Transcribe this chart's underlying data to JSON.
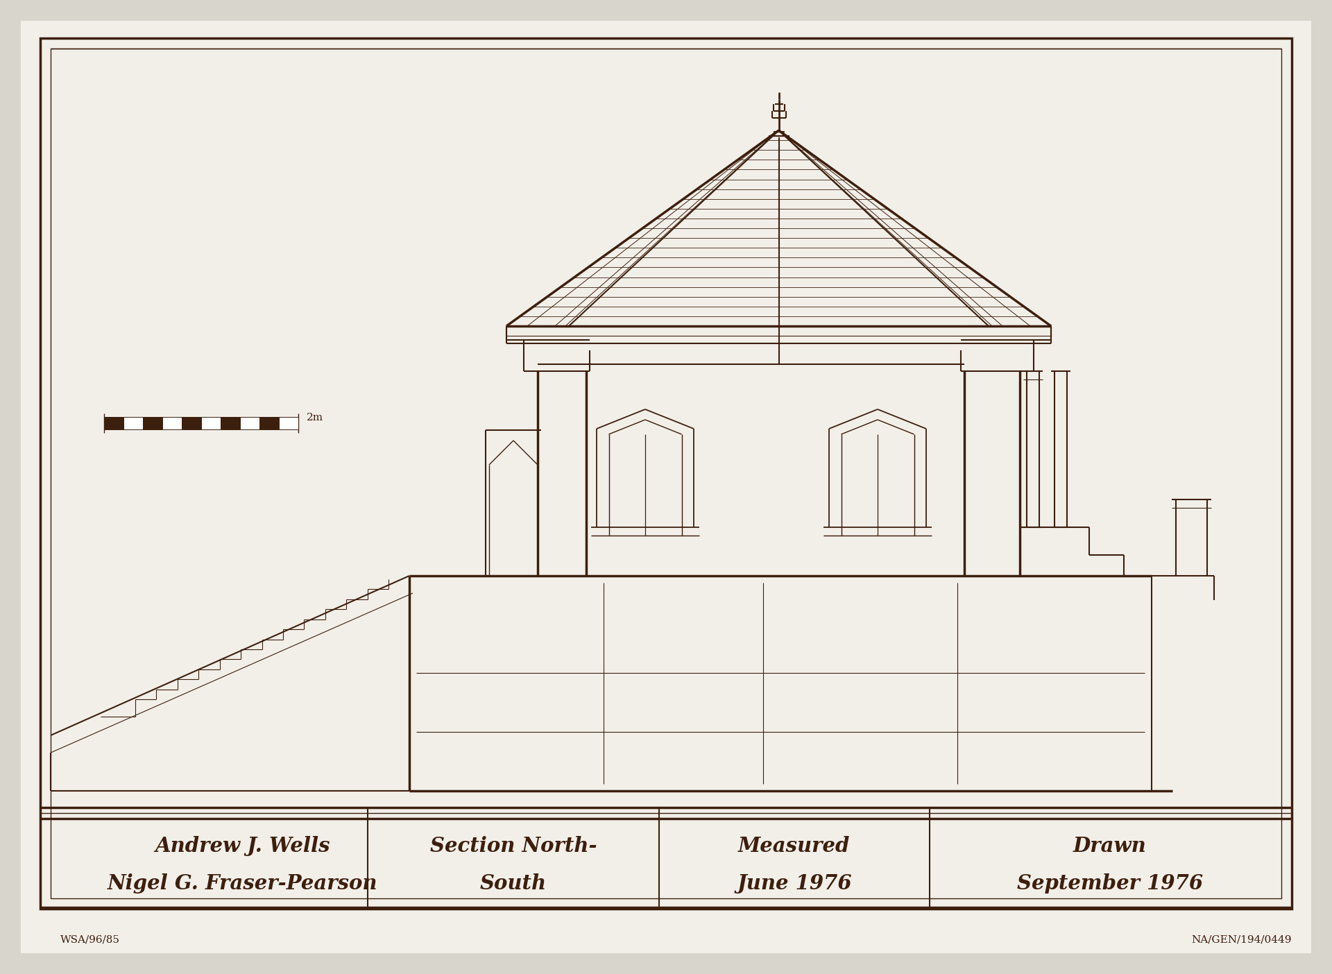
{
  "bg_color": "#d8d5cd",
  "paper_color": "#f2efe9",
  "line_color": "#3d1f0e",
  "title_line1": "Andrew J. Wells",
  "title_line2": "Nigel G. Fraser-Pearson",
  "section_line1": "Section North-",
  "section_line2": "South",
  "measured_line1": "Measured",
  "measured_line2": "June 1976",
  "drawn_line1": "Drawn",
  "drawn_line2": "September 1976",
  "ref_bottom_right": "NA/GEN/194/0449",
  "ref_bottom_left": "WSA/96/85"
}
